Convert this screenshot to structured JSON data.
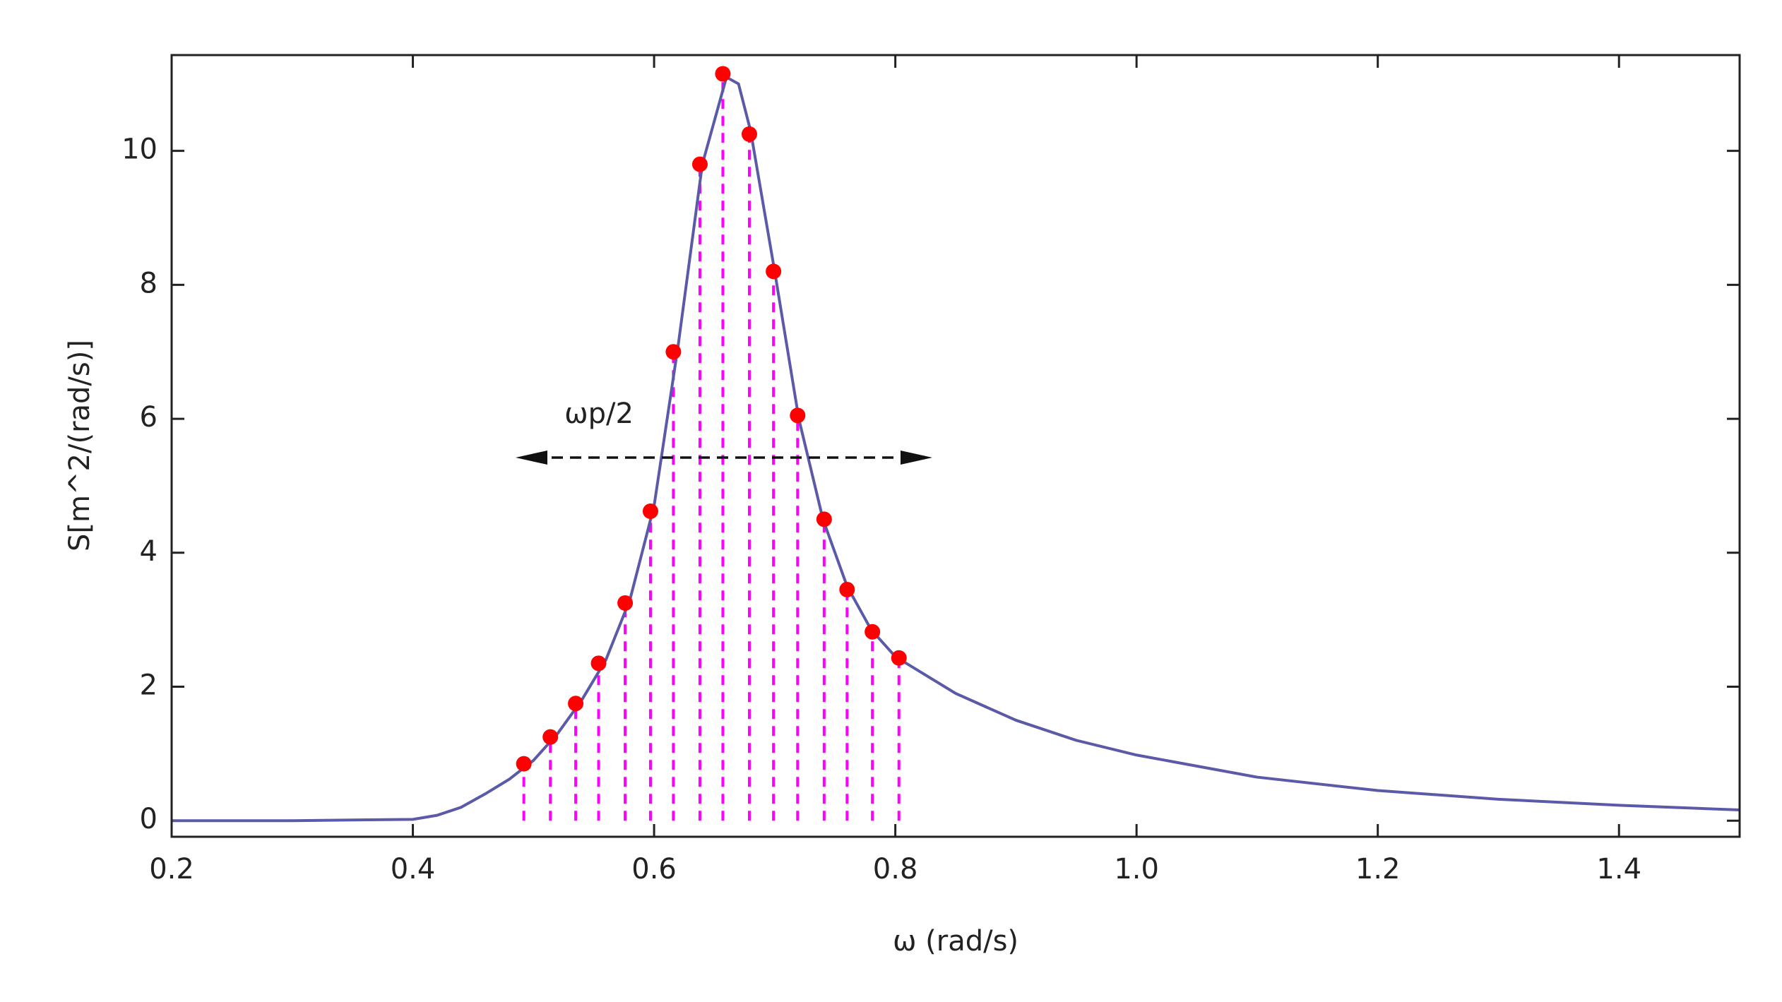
{
  "chart_data": {
    "type": "line",
    "x_label": "ω (rad/s)",
    "y_label": "S[m^2/(rad/s)]",
    "annotation": "ωp/2",
    "xlim": [
      0.2,
      1.5
    ],
    "ylim": [
      -0.24,
      11.43
    ],
    "xticks": [
      0.2,
      0.4,
      0.6,
      0.8,
      {
        "value": 1,
        "label": "1.0"
      },
      1.2,
      1.4
    ],
    "yticks": [
      0,
      2,
      4,
      6,
      8,
      10
    ],
    "series": [
      {
        "name": "spectrum",
        "color": "#5a5aa8",
        "x": [
          0.2,
          0.3,
          0.4,
          0.42,
          0.44,
          0.46,
          0.48,
          0.5,
          0.52,
          0.54,
          0.56,
          0.58,
          0.6,
          0.62,
          0.64,
          0.66,
          0.67,
          0.68,
          0.7,
          0.72,
          0.74,
          0.76,
          0.78,
          0.8,
          0.85,
          0.9,
          0.95,
          1.0,
          1.1,
          1.2,
          1.3,
          1.4,
          1.5
        ],
        "values": [
          0,
          0,
          0.02,
          0.08,
          0.2,
          0.4,
          0.62,
          0.9,
          1.3,
          1.8,
          2.4,
          3.3,
          4.7,
          7.1,
          9.8,
          11.1,
          11.0,
          10.3,
          8.2,
          6.0,
          4.5,
          3.5,
          2.85,
          2.45,
          1.9,
          1.5,
          1.2,
          0.98,
          0.65,
          0.45,
          0.32,
          0.23,
          0.16
        ]
      },
      {
        "name": "samples",
        "color": "#ff0000",
        "line_color": "#ff00ff",
        "x": [
          0.492,
          0.514,
          0.535,
          0.554,
          0.576,
          0.597,
          0.616,
          0.638,
          0.657,
          0.679,
          0.699,
          0.719,
          0.741,
          0.76,
          0.781,
          0.803
        ],
        "values": [
          0.85,
          1.25,
          1.75,
          2.35,
          3.25,
          4.62,
          7.0,
          9.8,
          11.15,
          10.25,
          8.2,
          6.05,
          4.5,
          3.45,
          2.82,
          2.43
        ]
      }
    ]
  }
}
